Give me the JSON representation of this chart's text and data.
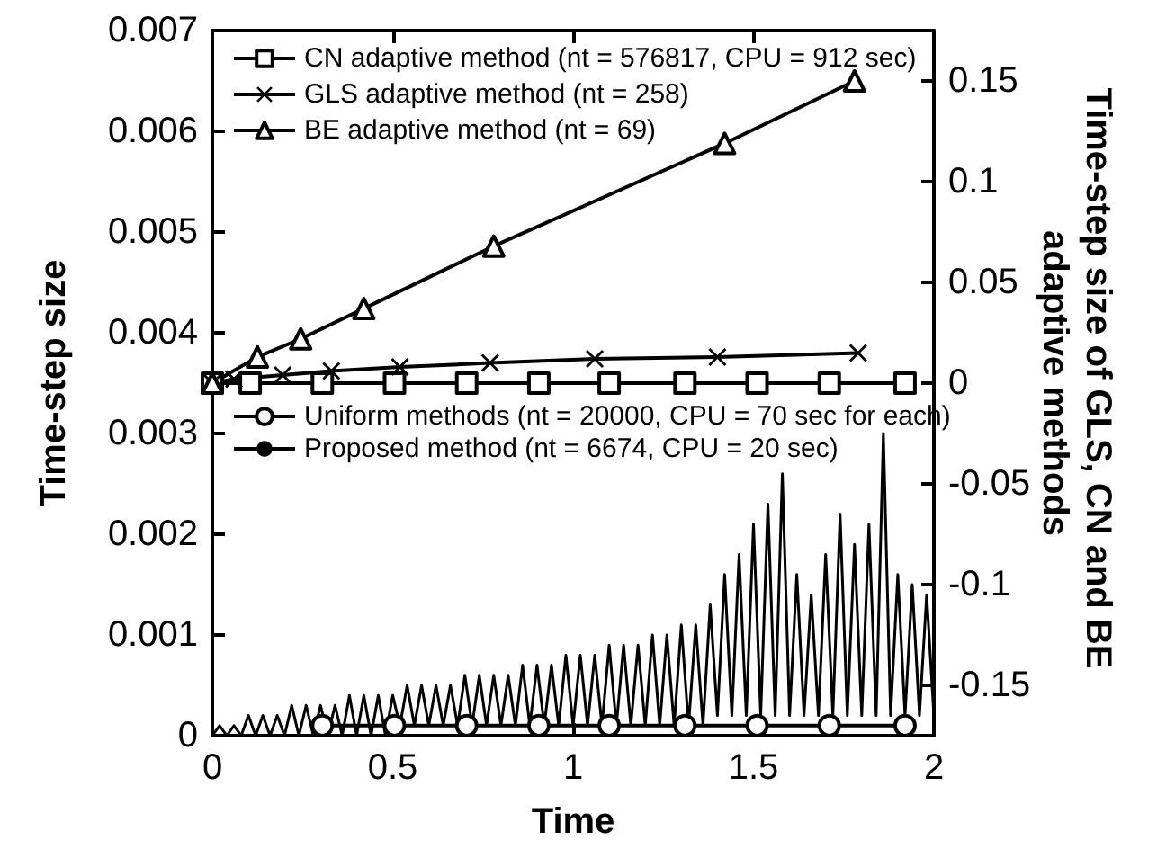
{
  "chart_data": {
    "type": "line",
    "xlabel": "Time",
    "ylabel": "Time-step size",
    "y2label": "Time-step size of GLS, CN and BE adaptive methods",
    "xlim": [
      0,
      2
    ],
    "xticks": [
      0,
      0.5,
      1,
      1.5,
      2
    ],
    "ylim": [
      0,
      0.007
    ],
    "yticks": [
      0,
      0.001,
      0.002,
      0.003,
      0.004,
      0.005,
      0.006,
      0.007
    ],
    "y2lim": [
      -0.175,
      0.175
    ],
    "y2ticks": [
      -0.15,
      -0.1,
      -0.05,
      0,
      0.05,
      0.1,
      0.15
    ],
    "grid": false,
    "legend": "top left",
    "series": [
      {
        "name": "CN adaptive method (nt = 576817, CPU = 912 sec)",
        "color": "#000000",
        "axis": "y2",
        "marker": "square",
        "x": [
          0,
          0.105,
          0.305,
          0.505,
          0.705,
          0.905,
          1.1,
          1.31,
          1.51,
          1.71,
          1.92
        ],
        "values": [
          0,
          0,
          0,
          0,
          0,
          0,
          0,
          0,
          0,
          0,
          0
        ]
      },
      {
        "name": "GLS adaptive method (nt = 258)",
        "color": "#000000",
        "axis": "y2",
        "marker": "cross",
        "x": [
          0,
          0.06,
          0.195,
          0.33,
          0.52,
          0.77,
          1.06,
          1.4,
          1.79
        ],
        "values": [
          0,
          0.002,
          0.004,
          0.006,
          0.008,
          0.01,
          0.012,
          0.013,
          0.015
        ]
      },
      {
        "name": "BE adaptive method (nt = 69)",
        "color": "#000000",
        "axis": "y2",
        "marker": "triangle",
        "x": [
          0,
          0.125,
          0.245,
          0.42,
          0.78,
          1.42,
          1.78
        ],
        "values": [
          0,
          0.013,
          0.022,
          0.037,
          0.068,
          0.119,
          0.15
        ]
      },
      {
        "name": "Uniform methods (nt = 20000, CPU = 70 sec for each)",
        "color": "#000000",
        "axis": "y",
        "marker": "circle",
        "x": [
          0.305,
          0.505,
          0.705,
          0.905,
          1.1,
          1.31,
          1.51,
          1.71,
          1.92
        ],
        "values": [
          0.0001,
          0.0001,
          0.0001,
          0.0001,
          0.0001,
          0.0001,
          0.0001,
          0.0001,
          0.0001
        ]
      },
      {
        "name": "Proposed method (nt = 6674, CPU = 20 sec)",
        "color": "#000000",
        "axis": "y",
        "marker": "none",
        "x": [
          0,
          0.02,
          0.04,
          0.06,
          0.08,
          0.1,
          0.12,
          0.14,
          0.16,
          0.18,
          0.2,
          0.22,
          0.24,
          0.26,
          0.28,
          0.3,
          0.32,
          0.34,
          0.36,
          0.38,
          0.4,
          0.42,
          0.44,
          0.46,
          0.48,
          0.5,
          0.52,
          0.54,
          0.56,
          0.58,
          0.6,
          0.62,
          0.64,
          0.66,
          0.68,
          0.7,
          0.72,
          0.74,
          0.76,
          0.78,
          0.8,
          0.82,
          0.84,
          0.86,
          0.88,
          0.9,
          0.92,
          0.94,
          0.96,
          0.98,
          1.0,
          1.02,
          1.04,
          1.06,
          1.08,
          1.1,
          1.12,
          1.14,
          1.16,
          1.18,
          1.2,
          1.22,
          1.24,
          1.26,
          1.28,
          1.3,
          1.32,
          1.34,
          1.36,
          1.38,
          1.4,
          1.42,
          1.44,
          1.46,
          1.48,
          1.5,
          1.52,
          1.54,
          1.56,
          1.58,
          1.6,
          1.62,
          1.64,
          1.66,
          1.68,
          1.7,
          1.72,
          1.74,
          1.76,
          1.78,
          1.8,
          1.82,
          1.84,
          1.86,
          1.88,
          1.9,
          1.92,
          1.94,
          1.96,
          1.98,
          2.0
        ],
        "values": [
          0,
          0.0001,
          0,
          0.0001,
          0,
          0.0002,
          0,
          0.0002,
          0,
          0.0002,
          0,
          0.0003,
          0,
          0.0003,
          0,
          0.0003,
          0,
          0.0003,
          0,
          0.0004,
          0,
          0.0004,
          0,
          0.0004,
          0,
          0.0004,
          0.0001,
          0.0005,
          0.0001,
          0.0005,
          0.0001,
          0.0005,
          0.0001,
          0.0005,
          0.0001,
          0.0006,
          0.0001,
          0.0006,
          0.0001,
          0.0006,
          0.0001,
          0.0006,
          0.0001,
          0.0007,
          0.0001,
          0.0007,
          0.0001,
          0.0007,
          0.0001,
          0.0008,
          0.0001,
          0.0008,
          0.0001,
          0.0008,
          0.0001,
          0.0009,
          0.0001,
          0.0009,
          0.0001,
          0.0009,
          0.0001,
          0.001,
          0.0001,
          0.001,
          0.0001,
          0.0011,
          0.0001,
          0.0011,
          0.0001,
          0.0013,
          0.0002,
          0.0016,
          0.0002,
          0.0018,
          0.0002,
          0.0021,
          0.0002,
          0.0023,
          0.0002,
          0.0026,
          0.0002,
          0.0016,
          0.0002,
          0.0014,
          0.0002,
          0.0018,
          0.0002,
          0.0022,
          0.0002,
          0.0019,
          0.0002,
          0.0021,
          0.0002,
          0.003,
          0.0002,
          0.0016,
          0.0002,
          0.0015,
          0.0002,
          0.0014,
          0.0002
        ]
      }
    ]
  }
}
